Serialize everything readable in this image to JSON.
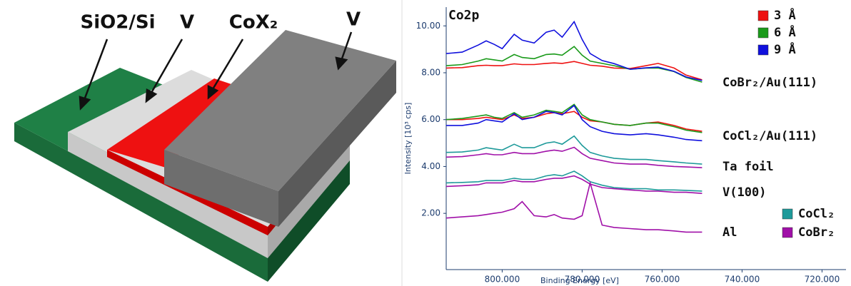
{
  "diagram": {
    "labels": [
      "SiO2/Si",
      "V",
      "CoX₂",
      "V"
    ]
  },
  "chart_data": {
    "type": "line",
    "annotation_title": "Co2p",
    "x_label": "Binding Energy [eV]",
    "y_label": "Intensity [10³ cps]",
    "xlim": [
      814,
      714
    ],
    "ylim": [
      -0.4,
      10.8
    ],
    "xticks": [
      {
        "value": 800,
        "label": "800.000"
      },
      {
        "value": 780,
        "label": "780.000"
      },
      {
        "value": 760,
        "label": "760.000"
      },
      {
        "value": 740,
        "label": "740.000"
      },
      {
        "value": 720,
        "label": "720.000"
      }
    ],
    "yticks": [
      {
        "value": 2,
        "label": "2.00"
      },
      {
        "value": 4,
        "label": "4.00"
      },
      {
        "value": 6,
        "label": "6.00"
      },
      {
        "value": 8,
        "label": "8.00"
      },
      {
        "value": 10,
        "label": "10.00"
      }
    ],
    "annotations": [
      "CoBr₂/Au(111)",
      "CoCl₂/Au(111)",
      "Ta foil",
      "V(100)",
      "Al"
    ],
    "x": [
      814,
      810,
      806,
      804,
      802,
      800,
      797,
      795,
      792,
      789,
      787,
      785,
      782,
      780,
      778,
      775,
      772,
      768,
      764,
      761,
      757,
      754,
      750
    ],
    "series": [
      {
        "name": "3 Å",
        "color": "#ee1111",
        "values": [
          8.2,
          8.22,
          8.3,
          8.32,
          8.3,
          8.3,
          8.38,
          8.35,
          8.35,
          8.4,
          8.42,
          8.4,
          8.48,
          8.4,
          8.32,
          8.28,
          8.2,
          8.18,
          8.3,
          8.4,
          8.2,
          7.9,
          7.7
        ]
      },
      {
        "name": "6 Å",
        "color": "#1a9a1a",
        "values": [
          8.3,
          8.35,
          8.5,
          8.6,
          8.55,
          8.5,
          8.78,
          8.65,
          8.6,
          8.78,
          8.8,
          8.75,
          9.12,
          8.75,
          8.5,
          8.4,
          8.3,
          8.15,
          8.2,
          8.2,
          8.05,
          7.8,
          7.6
        ]
      },
      {
        "name": "9 Å",
        "color": "#1010dd",
        "values": [
          8.82,
          8.88,
          9.18,
          9.36,
          9.21,
          9.03,
          9.64,
          9.39,
          9.27,
          9.73,
          9.82,
          9.52,
          10.18,
          9.42,
          8.82,
          8.52,
          8.39,
          8.15,
          8.21,
          8.24,
          8.06,
          7.82,
          7.67
        ]
      },
      {
        "name": "3 Å",
        "color": "#ee1111",
        "values": [
          6.0,
          6.0,
          6.05,
          6.1,
          6.05,
          6.0,
          6.2,
          6.05,
          6.1,
          6.25,
          6.3,
          6.25,
          6.35,
          6.1,
          5.95,
          5.9,
          5.8,
          5.75,
          5.85,
          5.9,
          5.75,
          5.6,
          5.5
        ]
      },
      {
        "name": "6 Å",
        "color": "#1a9a1a",
        "values": [
          6.0,
          6.05,
          6.15,
          6.2,
          6.1,
          6.05,
          6.3,
          6.1,
          6.2,
          6.4,
          6.35,
          6.3,
          6.65,
          6.2,
          6.0,
          5.9,
          5.8,
          5.75,
          5.85,
          5.85,
          5.7,
          5.55,
          5.45
        ]
      },
      {
        "name": "9 Å",
        "color": "#1010dd",
        "values": [
          5.75,
          5.75,
          5.85,
          6.0,
          5.95,
          5.9,
          6.25,
          6.0,
          6.1,
          6.35,
          6.3,
          6.2,
          6.6,
          6.0,
          5.7,
          5.5,
          5.4,
          5.35,
          5.4,
          5.35,
          5.25,
          5.15,
          5.1
        ]
      },
      {
        "name": "CoCl₂",
        "color": "#1e9a9a",
        "values": [
          4.6,
          4.62,
          4.7,
          4.8,
          4.75,
          4.7,
          4.95,
          4.8,
          4.8,
          5.0,
          5.05,
          4.95,
          5.3,
          4.9,
          4.6,
          4.45,
          4.35,
          4.3,
          4.3,
          4.25,
          4.2,
          4.15,
          4.1
        ]
      },
      {
        "name": "CoBr₂",
        "color": "#a010a8",
        "values": [
          4.4,
          4.42,
          4.5,
          4.55,
          4.5,
          4.5,
          4.6,
          4.55,
          4.55,
          4.65,
          4.7,
          4.65,
          4.82,
          4.55,
          4.35,
          4.25,
          4.15,
          4.1,
          4.1,
          4.05,
          4.0,
          3.98,
          3.95
        ]
      },
      {
        "name": "CoCl₂",
        "color": "#1e9a9a",
        "values": [
          3.3,
          3.32,
          3.35,
          3.4,
          3.4,
          3.4,
          3.5,
          3.45,
          3.45,
          3.6,
          3.65,
          3.6,
          3.8,
          3.6,
          3.35,
          3.2,
          3.1,
          3.05,
          3.05,
          3.0,
          3.0,
          2.98,
          2.95
        ]
      },
      {
        "name": "CoBr₂",
        "color": "#a010a8",
        "values": [
          3.15,
          3.18,
          3.22,
          3.3,
          3.3,
          3.3,
          3.4,
          3.35,
          3.35,
          3.45,
          3.5,
          3.5,
          3.6,
          3.45,
          3.25,
          3.1,
          3.05,
          3.0,
          2.95,
          2.95,
          2.9,
          2.9,
          2.85
        ]
      },
      {
        "name": "CoBr₂",
        "color": "#a010a8",
        "values": [
          1.8,
          1.85,
          1.9,
          1.95,
          2.0,
          2.05,
          2.2,
          2.5,
          1.9,
          1.85,
          1.95,
          1.8,
          1.75,
          1.9,
          3.3,
          1.5,
          1.4,
          1.35,
          1.3,
          1.3,
          1.25,
          1.2,
          1.2
        ]
      }
    ]
  }
}
